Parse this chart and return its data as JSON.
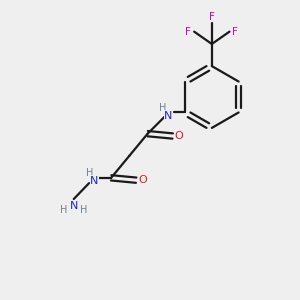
{
  "background_color": "#efefef",
  "bond_color": "#1a1a1a",
  "N_color": "#2020dd",
  "O_color": "#dd2020",
  "F_color": "#cc00cc",
  "H_color": "#708090",
  "figsize": [
    3.0,
    3.0
  ],
  "dpi": 100,
  "xlim": [
    0,
    10
  ],
  "ylim": [
    0,
    10
  ]
}
